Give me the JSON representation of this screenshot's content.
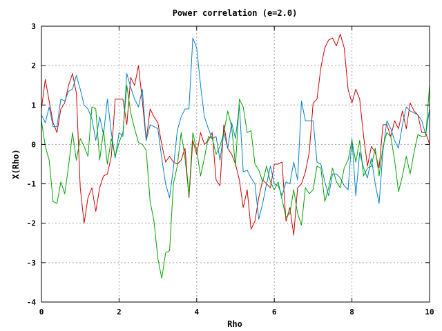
{
  "chart_data": {
    "type": "line",
    "title": "Power correlation (e=2.0)",
    "xlabel": "Rho",
    "ylabel": "X(Rho)",
    "xlim": [
      0,
      10
    ],
    "ylim": [
      -4,
      3
    ],
    "xticks": [
      0,
      2,
      4,
      6,
      8,
      10
    ],
    "yticks": [
      -4,
      -3,
      -2,
      -1,
      0,
      1,
      2,
      3
    ],
    "grid": true,
    "x": [
      0.0,
      0.1,
      0.2,
      0.3,
      0.4,
      0.5,
      0.6,
      0.7,
      0.8,
      0.9,
      1.0,
      1.1,
      1.2,
      1.3,
      1.4,
      1.5,
      1.6,
      1.7,
      1.8,
      1.9,
      2.0,
      2.1,
      2.2,
      2.3,
      2.4,
      2.5,
      2.6,
      2.7,
      2.8,
      2.9,
      3.0,
      3.1,
      3.2,
      3.3,
      3.4,
      3.5,
      3.6,
      3.7,
      3.8,
      3.9,
      4.0,
      4.1,
      4.2,
      4.3,
      4.4,
      4.5,
      4.6,
      4.7,
      4.8,
      4.9,
      5.0,
      5.1,
      5.2,
      5.3,
      5.4,
      5.5,
      5.6,
      5.7,
      5.8,
      5.9,
      6.0,
      6.1,
      6.2,
      6.3,
      6.4,
      6.5,
      6.6,
      6.7,
      6.8,
      6.9,
      7.0,
      7.1,
      7.2,
      7.3,
      7.4,
      7.5,
      7.6,
      7.7,
      7.8,
      7.9,
      8.0,
      8.1,
      8.2,
      8.3,
      8.4,
      8.5,
      8.6,
      8.7,
      8.8,
      8.9,
      9.0,
      9.1,
      9.2,
      9.3,
      9.4,
      9.5,
      9.6,
      9.7,
      9.8,
      9.9,
      10.0
    ],
    "series": [
      {
        "color": "#cc0000",
        "values": [
          0.9,
          1.65,
          1.1,
          0.55,
          0.3,
          0.9,
          1.05,
          1.5,
          1.8,
          1.3,
          -1.1,
          -2.0,
          -1.35,
          -1.1,
          -1.7,
          -1.1,
          -0.8,
          -0.75,
          -0.3,
          1.15,
          1.15,
          1.15,
          0.5,
          1.7,
          1.5,
          2.0,
          1.1,
          0.1,
          0.9,
          0.7,
          0.55,
          0.0,
          -0.45,
          -0.3,
          -0.45,
          -0.5,
          -0.4,
          -0.1,
          -1.35,
          0.1,
          -0.25,
          0.3,
          0.0,
          0.1,
          0.3,
          -0.9,
          -1.05,
          0.5,
          -0.1,
          -0.25,
          -0.5,
          -0.9,
          -1.6,
          -1.15,
          -2.15,
          -1.95,
          -1.35,
          -0.9,
          -1.0,
          -1.1,
          -0.5,
          -0.5,
          -0.45,
          -1.95,
          -1.6,
          -2.3,
          -1.1,
          -1.0,
          -0.7,
          -0.2,
          1.05,
          1.15,
          1.95,
          2.45,
          2.65,
          2.7,
          2.5,
          2.8,
          2.45,
          1.4,
          1.05,
          1.4,
          1.15,
          0.2,
          -0.55,
          -0.05,
          -0.2,
          -0.6,
          0.5,
          0.5,
          0.2,
          0.6,
          0.4,
          0.85,
          0.4,
          1.05,
          0.85,
          0.75,
          0.3,
          0.3,
          0.0
        ]
      },
      {
        "color": "#0080c0",
        "values": [
          0.75,
          0.55,
          0.95,
          0.45,
          0.45,
          1.15,
          1.1,
          1.35,
          1.4,
          1.75,
          1.4,
          1.0,
          0.9,
          0.65,
          0.1,
          0.7,
          0.25,
          1.15,
          0.3,
          -0.35,
          0.3,
          0.2,
          1.8,
          1.45,
          1.15,
          0.95,
          1.4,
          0.1,
          0.5,
          0.45,
          0.4,
          -0.35,
          -1.0,
          -1.35,
          -0.6,
          0.35,
          0.7,
          0.9,
          0.9,
          2.7,
          2.45,
          1.5,
          0.7,
          0.4,
          0.15,
          0.2,
          -0.4,
          0.3,
          -0.1,
          0.55,
          0.15,
          1.0,
          -0.7,
          -0.65,
          -0.85,
          -1.0,
          -1.9,
          -1.5,
          -1.0,
          -0.55,
          -1.0,
          -1.05,
          -1.3,
          -0.95,
          -1.0,
          -0.45,
          -0.9,
          1.1,
          0.6,
          0.6,
          0.6,
          -0.45,
          -0.5,
          -0.95,
          -1.3,
          -0.75,
          -0.75,
          -0.85,
          -1.05,
          -1.15,
          0.15,
          -1.3,
          -0.2,
          -0.6,
          -0.85,
          -0.35,
          -1.0,
          -1.5,
          -0.15,
          0.6,
          0.4,
          0.1,
          -0.1,
          0.5,
          0.95,
          0.85,
          0.8,
          0.75,
          0.6,
          0.25,
          0.9
        ]
      },
      {
        "color": "#00a000",
        "values": [
          0.6,
          -0.05,
          -0.4,
          -1.45,
          -1.5,
          -0.95,
          -1.25,
          -0.55,
          0.3,
          -0.4,
          0.15,
          -0.05,
          -0.3,
          0.95,
          0.9,
          -0.4,
          0.35,
          -0.5,
          0.15,
          -0.3,
          0.05,
          0.3,
          1.5,
          0.8,
          0.4,
          0.05,
          0.0,
          -0.15,
          -1.45,
          -1.95,
          -2.9,
          -3.4,
          -2.75,
          -2.7,
          -1.0,
          -0.55,
          0.3,
          -0.35,
          -1.3,
          0.3,
          -0.15,
          -0.8,
          -0.35,
          0.2,
          0.15,
          -0.25,
          -0.05,
          0.3,
          0.85,
          0.45,
          -0.55,
          1.15,
          0.95,
          0.3,
          0.35,
          -0.5,
          -0.65,
          -0.95,
          -0.55,
          -0.95,
          -1.15,
          -0.95,
          -1.4,
          -1.85,
          -1.75,
          -1.15,
          -1.75,
          -2.05,
          -1.1,
          -1.25,
          -1.15,
          -0.55,
          -0.6,
          -1.45,
          -1.1,
          -0.6,
          -0.95,
          -1.1,
          -0.6,
          -0.4,
          0.1,
          -0.45,
          0.1,
          -0.8,
          -0.6,
          -0.55,
          -0.1,
          -0.8,
          -0.05,
          0.3,
          0.2,
          -0.4,
          -1.2,
          -0.8,
          -0.3,
          -0.75,
          -0.2,
          0.25,
          0.2,
          0.2,
          1.5
        ]
      }
    ]
  }
}
